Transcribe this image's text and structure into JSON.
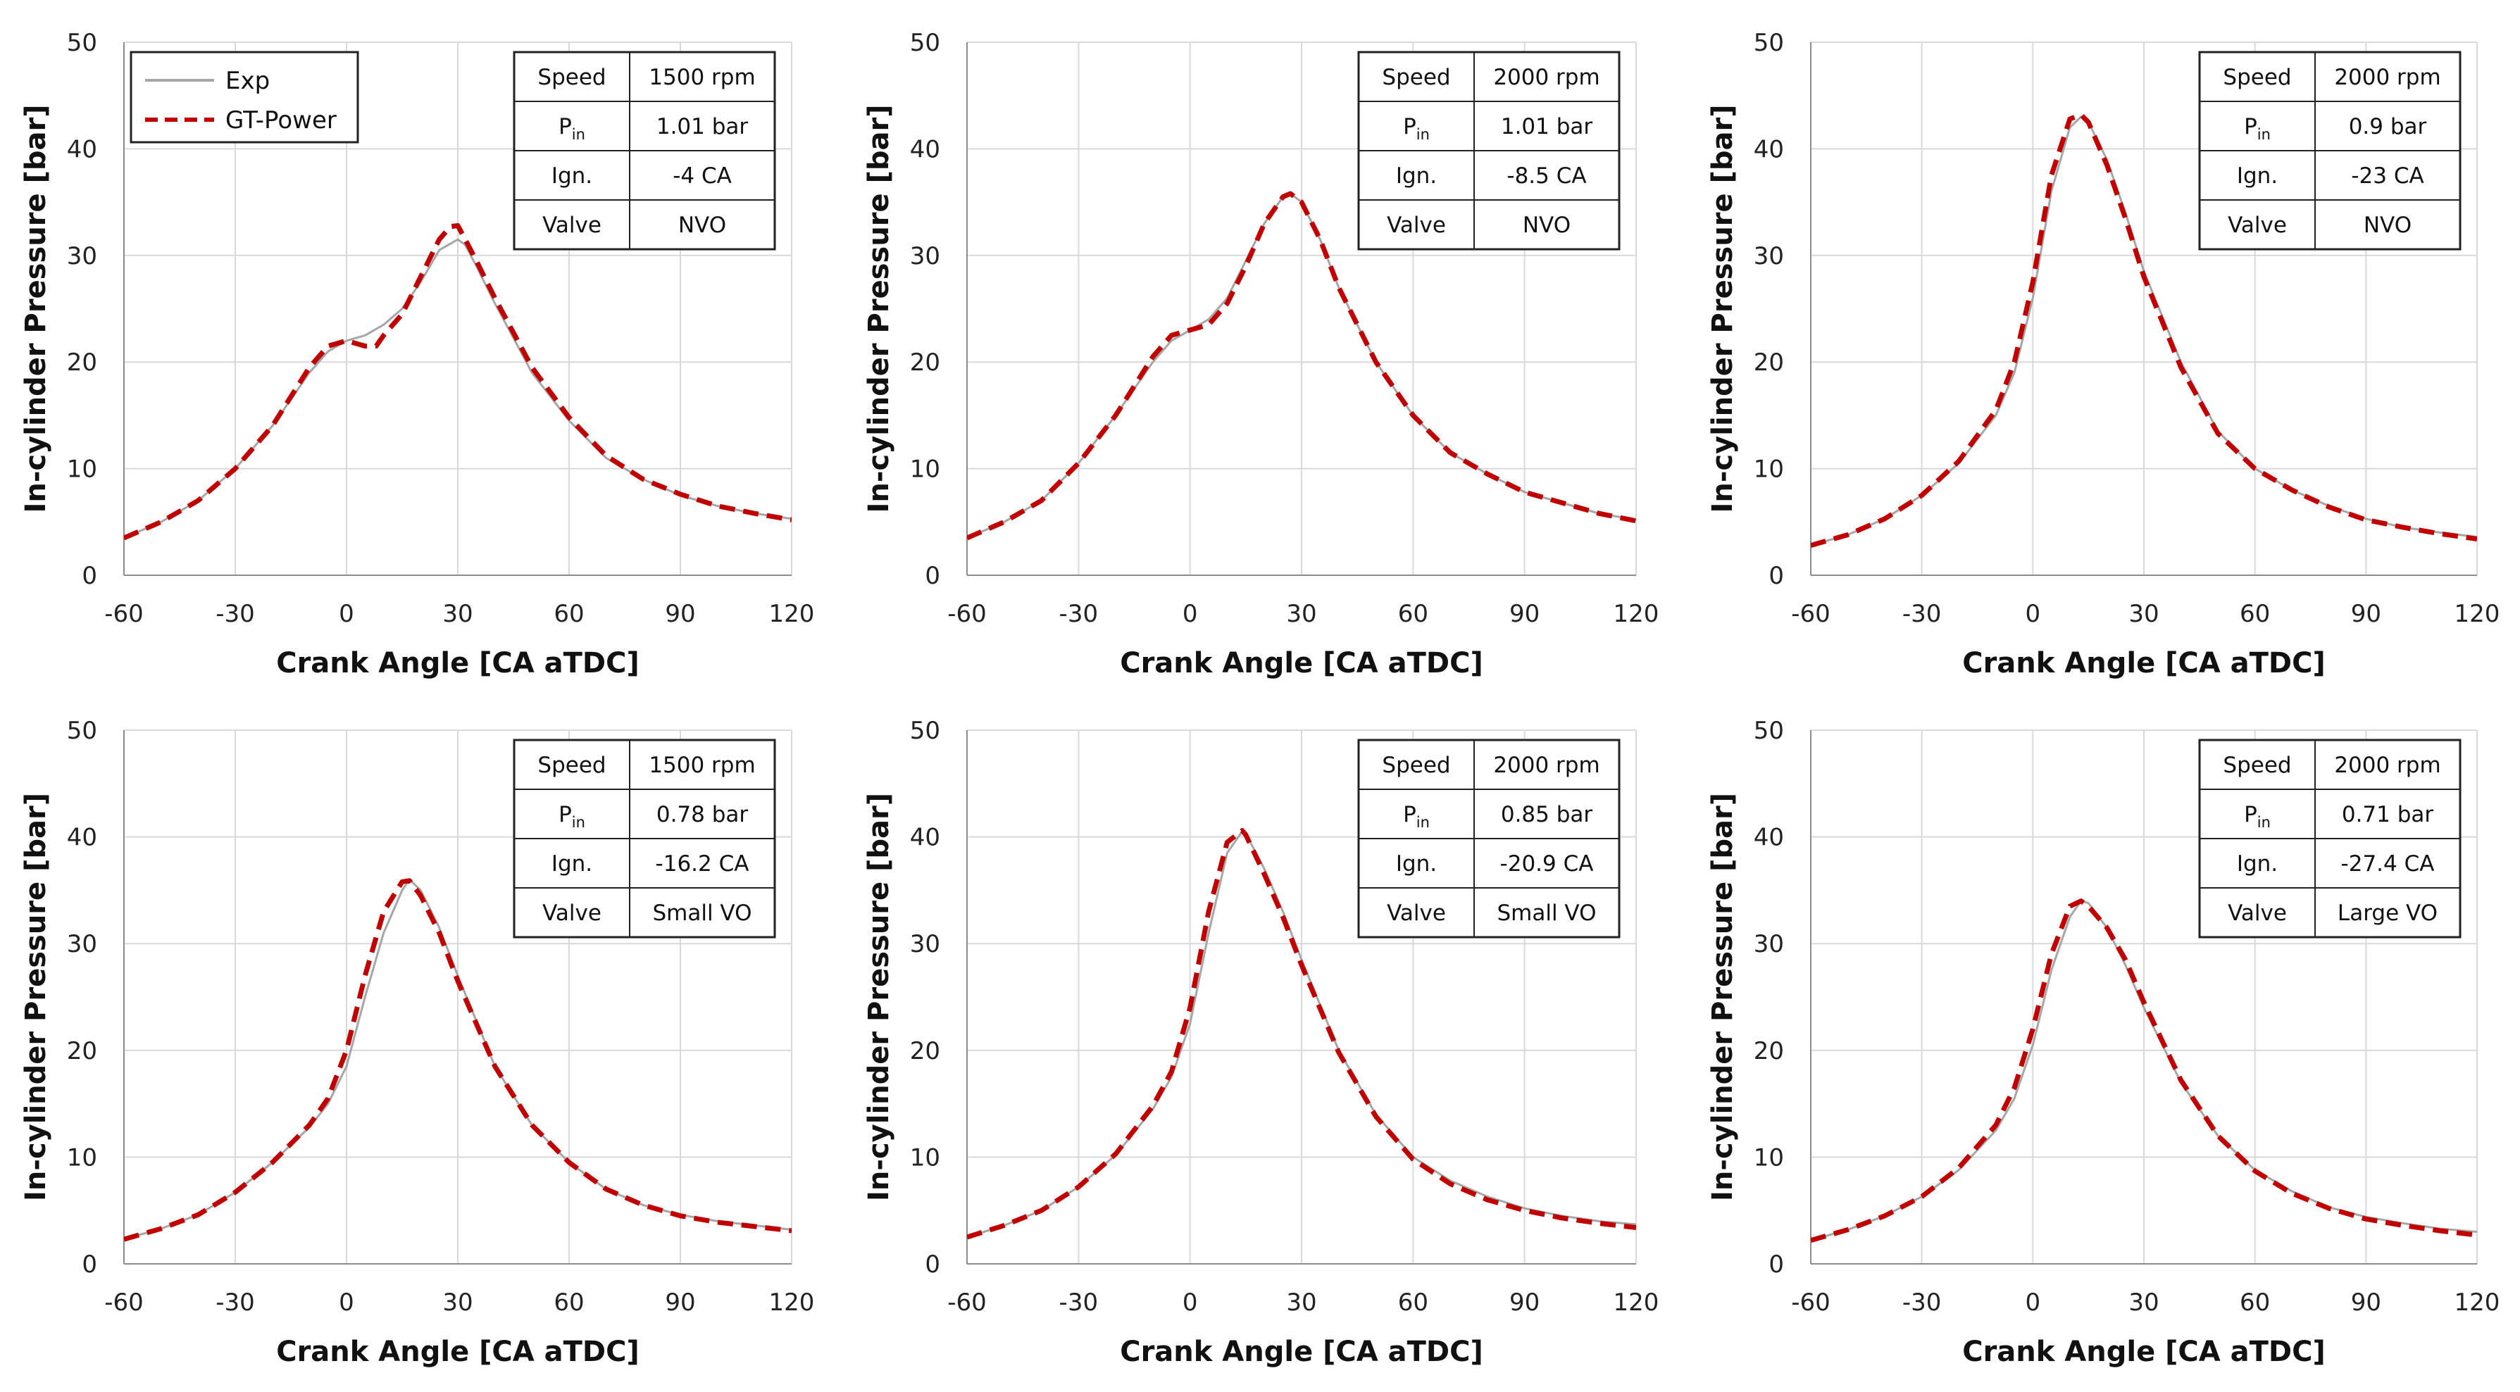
{
  "colors": {
    "exp": "#a6a6a6",
    "gt": "#c00000",
    "grid": "#d9d9d9"
  },
  "legend": {
    "exp_label": "Exp",
    "gt_label": "GT-Power"
  },
  "chart_data": [
    {
      "type": "line",
      "title": "",
      "xlabel": "Crank Angle [CA aTDC]",
      "ylabel": "In-cylinder Pressure [bar]",
      "xlim": [
        -60,
        120
      ],
      "ylim": [
        0,
        50
      ],
      "xticks": [
        "-60",
        "-30",
        "0",
        "30",
        "60",
        "90",
        "120"
      ],
      "yticks": [
        "0",
        "10",
        "20",
        "30",
        "40",
        "50"
      ],
      "conditions": [
        {
          "label": "Speed",
          "sub": "",
          "value": "1500 rpm"
        },
        {
          "label": "P",
          "sub": "in",
          "value": "1.01 bar"
        },
        {
          "label": "Ign.",
          "sub": "",
          "value": "-4 CA"
        },
        {
          "label": "Valve",
          "sub": "",
          "value": "NVO"
        }
      ],
      "series": [
        {
          "name": "Exp",
          "x": [
            -60,
            -50,
            -40,
            -30,
            -20,
            -10,
            -5,
            0,
            5,
            10,
            15,
            20,
            25,
            30,
            32,
            35,
            40,
            50,
            60,
            70,
            80,
            90,
            100,
            110,
            120
          ],
          "y": [
            3.5,
            5,
            7,
            10,
            14,
            19,
            21,
            22,
            22.5,
            23.5,
            25,
            27.5,
            30.5,
            31.5,
            31,
            29,
            25.5,
            19,
            14.5,
            11,
            9,
            7.5,
            6.5,
            5.8,
            5.3
          ]
        },
        {
          "name": "GT-Power",
          "x": [
            -60,
            -50,
            -40,
            -30,
            -20,
            -10,
            -5,
            0,
            5,
            8,
            10,
            15,
            20,
            25,
            28,
            30,
            32,
            35,
            40,
            50,
            60,
            70,
            80,
            90,
            100,
            110,
            120
          ],
          "y": [
            3.5,
            5,
            7,
            10,
            14,
            19.5,
            21.5,
            22,
            21.5,
            21.5,
            22.5,
            24.5,
            28,
            31.5,
            32.7,
            32.8,
            31.5,
            29.5,
            26,
            19.5,
            14.8,
            11.2,
            9,
            7.6,
            6.5,
            5.8,
            5.2
          ]
        }
      ]
    },
    {
      "type": "line",
      "title": "",
      "xlabel": "Crank Angle [CA aTDC]",
      "ylabel": "In-cylinder Pressure [bar]",
      "xlim": [
        -60,
        120
      ],
      "ylim": [
        0,
        50
      ],
      "xticks": [
        "-60",
        "-30",
        "0",
        "30",
        "60",
        "90",
        "120"
      ],
      "yticks": [
        "0",
        "10",
        "20",
        "30",
        "40",
        "50"
      ],
      "conditions": [
        {
          "label": "Speed",
          "sub": "",
          "value": "2000 rpm"
        },
        {
          "label": "P",
          "sub": "in",
          "value": "1.01 bar"
        },
        {
          "label": "Ign.",
          "sub": "",
          "value": "-8.5 CA"
        },
        {
          "label": "Valve",
          "sub": "",
          "value": "NVO"
        }
      ],
      "series": [
        {
          "name": "Exp",
          "x": [
            -60,
            -50,
            -40,
            -30,
            -20,
            -10,
            -5,
            0,
            5,
            10,
            15,
            20,
            25,
            27,
            30,
            35,
            40,
            50,
            60,
            70,
            80,
            90,
            100,
            110,
            120
          ],
          "y": [
            3.5,
            5,
            7,
            10.5,
            15,
            20,
            22,
            23,
            24,
            26,
            29.5,
            33,
            35.5,
            35.8,
            35,
            31.5,
            27,
            20,
            15,
            11.5,
            9.5,
            7.8,
            6.8,
            5.8,
            5.2
          ]
        },
        {
          "name": "GT-Power",
          "x": [
            -60,
            -50,
            -40,
            -30,
            -20,
            -10,
            -5,
            0,
            5,
            10,
            15,
            20,
            25,
            27,
            30,
            35,
            40,
            50,
            60,
            70,
            80,
            90,
            100,
            110,
            120
          ],
          "y": [
            3.5,
            5,
            7,
            10.5,
            15,
            20.5,
            22.5,
            23,
            23.5,
            25.5,
            29,
            33,
            35.5,
            35.8,
            35,
            31.5,
            27,
            20,
            15,
            11.5,
            9.5,
            7.8,
            6.8,
            5.8,
            5.1
          ]
        }
      ]
    },
    {
      "type": "line",
      "title": "",
      "xlabel": "Crank Angle [CA aTDC]",
      "ylabel": "In-cylinder Pressure [bar]",
      "xlim": [
        -60,
        120
      ],
      "ylim": [
        0,
        50
      ],
      "xticks": [
        "-60",
        "-30",
        "0",
        "30",
        "60",
        "90",
        "120"
      ],
      "yticks": [
        "0",
        "10",
        "20",
        "30",
        "40",
        "50"
      ],
      "conditions": [
        {
          "label": "Speed",
          "sub": "",
          "value": "2000 rpm"
        },
        {
          "label": "P",
          "sub": "in",
          "value": "0.9 bar"
        },
        {
          "label": "Ign.",
          "sub": "",
          "value": "-23 CA"
        },
        {
          "label": "Valve",
          "sub": "",
          "value": "NVO"
        }
      ],
      "series": [
        {
          "name": "Exp",
          "x": [
            -60,
            -50,
            -40,
            -30,
            -20,
            -10,
            -5,
            0,
            5,
            10,
            13,
            15,
            20,
            25,
            30,
            40,
            50,
            60,
            70,
            80,
            90,
            100,
            110,
            120
          ],
          "y": [
            2.8,
            3.8,
            5.3,
            7.5,
            10.5,
            15,
            19,
            26,
            36,
            42,
            43,
            42.5,
            39,
            34,
            28.5,
            20,
            13.5,
            10,
            8,
            6.5,
            5.3,
            4.5,
            4,
            3.6
          ]
        },
        {
          "name": "GT-Power",
          "x": [
            -60,
            -50,
            -40,
            -30,
            -20,
            -10,
            -5,
            0,
            5,
            10,
            13,
            15,
            20,
            25,
            30,
            40,
            50,
            60,
            70,
            80,
            90,
            100,
            110,
            120
          ],
          "y": [
            2.8,
            3.8,
            5.3,
            7.5,
            10.7,
            15.5,
            20,
            27.5,
            37.5,
            42.8,
            43.2,
            42.5,
            38.5,
            33.5,
            28,
            19.5,
            13.3,
            10,
            8,
            6.4,
            5.2,
            4.5,
            3.9,
            3.4
          ]
        }
      ]
    },
    {
      "type": "line",
      "title": "",
      "xlabel": "Crank Angle [CA aTDC]",
      "ylabel": "In-cylinder Pressure [bar]",
      "xlim": [
        -60,
        120
      ],
      "ylim": [
        0,
        50
      ],
      "xticks": [
        "-60",
        "-30",
        "0",
        "30",
        "60",
        "90",
        "120"
      ],
      "yticks": [
        "0",
        "10",
        "20",
        "30",
        "40",
        "50"
      ],
      "conditions": [
        {
          "label": "Speed",
          "sub": "",
          "value": "1500 rpm"
        },
        {
          "label": "P",
          "sub": "in",
          "value": "0.78 bar"
        },
        {
          "label": "Ign.",
          "sub": "",
          "value": "-16.2 CA"
        },
        {
          "label": "Valve",
          "sub": "",
          "value": "Small VO"
        }
      ],
      "series": [
        {
          "name": "Exp",
          "x": [
            -60,
            -50,
            -40,
            -30,
            -20,
            -10,
            -5,
            0,
            5,
            10,
            15,
            17,
            20,
            25,
            30,
            40,
            50,
            60,
            70,
            80,
            90,
            100,
            110,
            120
          ],
          "y": [
            2.3,
            3.3,
            4.6,
            6.7,
            9.5,
            12.8,
            15,
            18.5,
            25,
            31,
            35,
            36,
            35,
            31.5,
            27,
            18.5,
            13,
            9.5,
            7,
            5.5,
            4.6,
            4,
            3.6,
            3.2
          ]
        },
        {
          "name": "GT-Power",
          "x": [
            -60,
            -50,
            -40,
            -30,
            -20,
            -10,
            -5,
            0,
            5,
            10,
            15,
            17,
            20,
            25,
            30,
            40,
            50,
            60,
            70,
            80,
            90,
            100,
            110,
            120
          ],
          "y": [
            2.3,
            3.3,
            4.6,
            6.7,
            9.5,
            13,
            15.5,
            20,
            27,
            33,
            35.8,
            35.9,
            34.5,
            31,
            26.5,
            18.5,
            13,
            9.5,
            7,
            5.5,
            4.5,
            3.9,
            3.5,
            3.1
          ]
        }
      ]
    },
    {
      "type": "line",
      "title": "",
      "xlabel": "Crank Angle [CA aTDC]",
      "ylabel": "In-cylinder Pressure [bar]",
      "xlim": [
        -60,
        120
      ],
      "ylim": [
        0,
        50
      ],
      "xticks": [
        "-60",
        "-30",
        "0",
        "30",
        "60",
        "90",
        "120"
      ],
      "yticks": [
        "0",
        "10",
        "20",
        "30",
        "40",
        "50"
      ],
      "conditions": [
        {
          "label": "Speed",
          "sub": "",
          "value": "2000 rpm"
        },
        {
          "label": "P",
          "sub": "in",
          "value": "0.85 bar"
        },
        {
          "label": "Ign.",
          "sub": "",
          "value": "-20.9 CA"
        },
        {
          "label": "Valve",
          "sub": "",
          "value": "Small VO"
        }
      ],
      "series": [
        {
          "name": "Exp",
          "x": [
            -60,
            -50,
            -40,
            -30,
            -20,
            -10,
            -5,
            0,
            5,
            10,
            14,
            15,
            20,
            25,
            30,
            40,
            50,
            60,
            70,
            80,
            90,
            100,
            110,
            120
          ],
          "y": [
            2.5,
            3.6,
            5,
            7.2,
            10.2,
            14.5,
            17.5,
            22.5,
            31,
            38.5,
            40.5,
            40.3,
            37,
            33,
            28.5,
            20,
            14,
            10,
            7.8,
            6.3,
            5.2,
            4.5,
            4,
            3.7
          ]
        },
        {
          "name": "GT-Power",
          "x": [
            -60,
            -50,
            -40,
            -30,
            -20,
            -10,
            -5,
            0,
            5,
            10,
            14,
            15,
            20,
            25,
            30,
            40,
            50,
            60,
            70,
            80,
            90,
            100,
            110,
            120
          ],
          "y": [
            2.5,
            3.6,
            5,
            7.2,
            10.3,
            14.8,
            18,
            24,
            33,
            39.5,
            40.6,
            40.2,
            36.5,
            32.5,
            28,
            19.8,
            13.8,
            9.8,
            7.5,
            6,
            5,
            4.3,
            3.8,
            3.4
          ]
        }
      ]
    },
    {
      "type": "line",
      "title": "",
      "xlabel": "Crank Angle [CA aTDC]",
      "ylabel": "In-cylinder Pressure [bar]",
      "xlim": [
        -60,
        120
      ],
      "ylim": [
        0,
        50
      ],
      "xticks": [
        "-60",
        "-30",
        "0",
        "30",
        "60",
        "90",
        "120"
      ],
      "yticks": [
        "0",
        "10",
        "20",
        "30",
        "40",
        "50"
      ],
      "conditions": [
        {
          "label": "Speed",
          "sub": "",
          "value": "2000 rpm"
        },
        {
          "label": "P",
          "sub": "in",
          "value": "0.71 bar"
        },
        {
          "label": "Ign.",
          "sub": "",
          "value": "-27.4 CA"
        },
        {
          "label": "Valve",
          "sub": "",
          "value": "Large VO"
        }
      ],
      "series": [
        {
          "name": "Exp",
          "x": [
            -60,
            -50,
            -40,
            -30,
            -20,
            -10,
            -5,
            0,
            5,
            10,
            13,
            15,
            20,
            25,
            30,
            40,
            50,
            60,
            70,
            80,
            90,
            100,
            110,
            120
          ],
          "y": [
            2.2,
            3.2,
            4.5,
            6.3,
            8.8,
            12.5,
            15.5,
            20.5,
            27.5,
            32.5,
            34,
            33.8,
            31.5,
            28,
            24,
            17,
            12,
            8.8,
            6.8,
            5.3,
            4.4,
            3.8,
            3.3,
            3
          ]
        },
        {
          "name": "GT-Power",
          "x": [
            -60,
            -50,
            -40,
            -30,
            -20,
            -10,
            -5,
            0,
            5,
            10,
            13,
            15,
            20,
            25,
            30,
            40,
            50,
            60,
            70,
            80,
            90,
            100,
            110,
            120
          ],
          "y": [
            2.2,
            3.2,
            4.5,
            6.3,
            9,
            13,
            16.5,
            22,
            29,
            33.5,
            34,
            33.5,
            31.5,
            28.5,
            24.5,
            17.2,
            12,
            8.7,
            6.6,
            5.2,
            4.2,
            3.6,
            3.1,
            2.7
          ]
        }
      ]
    }
  ]
}
